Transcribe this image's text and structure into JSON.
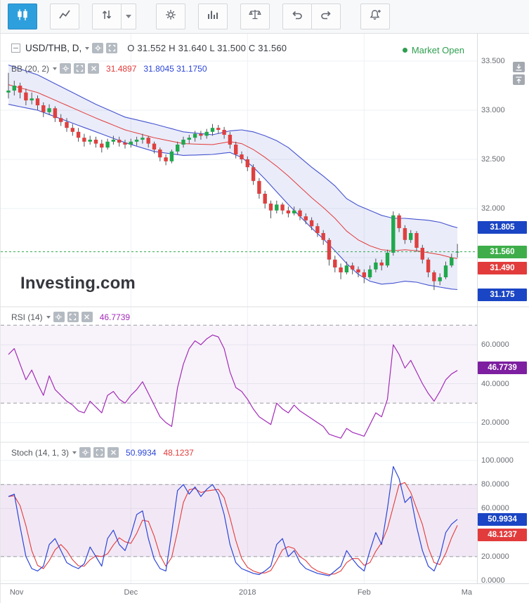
{
  "colors": {
    "accent_blue": "#2e9fdd",
    "up_green": "#1fa84c",
    "down_red": "#de4040",
    "wick": "#50535a",
    "bb_blue": "#4453cf",
    "bb_fill": "rgba(90,105,205,0.13)",
    "bb_red": "#e23b3b",
    "rsi_purple": "#a22bb8",
    "rsi_band_fill": "rgba(128,30,160,0.055)",
    "stoch_k_blue": "#2c46d8",
    "stoch_d_red": "#e23b3b",
    "stoch_band_fill": "rgba(128,30,160,0.10)",
    "badge_blue": "#1a45c4",
    "badge_green": "#3fae4a",
    "badge_red": "#e23b3b",
    "badge_purple": "#7d1fa0",
    "market_open_green": "#2e9e4f",
    "last_price_line": "#2fa84f",
    "grid": "#eef0f4",
    "dashed_band": "#9b9ba3"
  },
  "toolbar": {
    "buttons": [
      {
        "name": "candlestick-style-button",
        "icon": "candlestick-chart-icon",
        "active": true
      },
      {
        "name": "line-style-button",
        "icon": "line-chart-icon",
        "active": false
      },
      {
        "name": "intervals-button",
        "icon": "up-down-arrows-icon",
        "active": false
      },
      {
        "name": "intervals-dropdown-button",
        "icon": "chevron-down-icon",
        "active": false
      },
      {
        "name": "settings-button",
        "icon": "gear-icon",
        "active": false
      },
      {
        "name": "indicators-button",
        "icon": "bar-chart-icon",
        "active": false
      },
      {
        "name": "scales-button",
        "icon": "balance-scale-icon",
        "active": false
      },
      {
        "name": "undo-button",
        "icon": "undo-arrow-icon",
        "active": false
      },
      {
        "name": "redo-button",
        "icon": "redo-arrow-icon",
        "active": false
      },
      {
        "name": "alerts-button",
        "icon": "bell-plus-icon",
        "active": false
      }
    ]
  },
  "main_chart": {
    "symbol": "USD/THB, D,",
    "ohlc": "O 31.552  H 31.640  L 31.500  C 31.560",
    "market_status": "Market Open",
    "bb": {
      "label": "BB (20, 2)",
      "middle_value": "31.4897",
      "upper_lower_values": "31.8045  31.1750"
    },
    "badges": {
      "upper": "31.805",
      "last": "31.560",
      "middle": "31.490",
      "lower": "31.175"
    },
    "watermark": "Investing",
    "watermark_suffix": ".com"
  },
  "rsi": {
    "label": "RSI (14)",
    "value": "46.7739",
    "badge": "46.7739"
  },
  "stoch": {
    "label": "Stoch (14, 1, 3)",
    "k_value": "50.9934",
    "d_value": "48.1237",
    "k_badge": "50.9934",
    "d_badge": "48.1237"
  },
  "chart_data": {
    "type": "candlestick",
    "symbol": "USD/THB",
    "interval": "D",
    "x_labels": [
      {
        "label": "Nov",
        "index": 1.4
      },
      {
        "label": "Dec",
        "index": 21
      },
      {
        "label": "2018",
        "index": 41
      },
      {
        "label": "Feb",
        "index": 61
      },
      {
        "label": "Ma",
        "index": 78.6
      }
    ],
    "gridline_indices": [
      21,
      41,
      61
    ],
    "candles": [
      [
        33.18,
        33.38,
        33.12,
        33.2
      ],
      [
        33.2,
        33.3,
        33.15,
        33.25
      ],
      [
        33.25,
        33.28,
        33.12,
        33.18
      ],
      [
        33.18,
        33.22,
        33.05,
        33.1
      ],
      [
        33.1,
        33.18,
        33.06,
        33.12
      ],
      [
        33.12,
        33.15,
        33.0,
        33.05
      ],
      [
        33.05,
        33.08,
        32.93,
        32.98
      ],
      [
        32.98,
        33.06,
        32.95,
        33.02
      ],
      [
        33.02,
        33.04,
        32.88,
        32.92
      ],
      [
        32.92,
        32.96,
        32.84,
        32.88
      ],
      [
        32.88,
        32.92,
        32.78,
        32.82
      ],
      [
        32.82,
        32.86,
        32.74,
        32.78
      ],
      [
        32.78,
        32.82,
        32.68,
        32.72
      ],
      [
        32.72,
        32.76,
        32.63,
        32.68
      ],
      [
        32.68,
        32.74,
        32.65,
        32.7
      ],
      [
        32.7,
        32.73,
        32.62,
        32.66
      ],
      [
        32.66,
        32.7,
        32.57,
        32.62
      ],
      [
        32.62,
        32.71,
        32.6,
        32.68
      ],
      [
        32.68,
        32.74,
        32.65,
        32.7
      ],
      [
        32.7,
        32.73,
        32.63,
        32.67
      ],
      [
        32.67,
        32.7,
        32.61,
        32.65
      ],
      [
        32.65,
        32.71,
        32.62,
        32.68
      ],
      [
        32.68,
        32.73,
        32.64,
        32.7
      ],
      [
        32.7,
        32.76,
        32.66,
        32.72
      ],
      [
        32.72,
        32.74,
        32.62,
        32.66
      ],
      [
        32.66,
        32.68,
        32.56,
        32.6
      ],
      [
        32.6,
        32.62,
        32.48,
        32.52
      ],
      [
        32.52,
        32.55,
        32.44,
        32.48
      ],
      [
        32.48,
        32.6,
        32.46,
        32.58
      ],
      [
        32.58,
        32.68,
        32.55,
        32.65
      ],
      [
        32.65,
        32.73,
        32.62,
        32.7
      ],
      [
        32.7,
        32.75,
        32.66,
        32.72
      ],
      [
        32.72,
        32.79,
        32.68,
        32.76
      ],
      [
        32.76,
        32.79,
        32.7,
        32.74
      ],
      [
        32.74,
        32.81,
        32.71,
        32.78
      ],
      [
        32.78,
        32.86,
        32.74,
        32.82
      ],
      [
        32.82,
        32.85,
        32.76,
        32.8
      ],
      [
        32.8,
        32.83,
        32.71,
        32.75
      ],
      [
        32.75,
        32.78,
        32.61,
        32.65
      ],
      [
        32.65,
        32.68,
        32.51,
        32.55
      ],
      [
        32.55,
        32.58,
        32.46,
        32.5
      ],
      [
        32.5,
        32.53,
        32.38,
        32.42
      ],
      [
        32.42,
        32.45,
        32.24,
        32.28
      ],
      [
        32.28,
        32.31,
        32.1,
        32.15
      ],
      [
        32.15,
        32.18,
        32.0,
        32.05
      ],
      [
        32.05,
        32.08,
        31.9,
        31.98
      ],
      [
        31.98,
        32.08,
        31.95,
        32.04
      ],
      [
        32.04,
        32.06,
        31.94,
        31.98
      ],
      [
        31.98,
        32.02,
        31.91,
        31.95
      ],
      [
        31.95,
        32.02,
        31.93,
        31.98
      ],
      [
        31.98,
        32.0,
        31.88,
        31.92
      ],
      [
        31.92,
        31.95,
        31.84,
        31.88
      ],
      [
        31.88,
        31.91,
        31.78,
        31.82
      ],
      [
        31.82,
        31.85,
        31.71,
        31.75
      ],
      [
        31.75,
        31.78,
        31.63,
        31.68
      ],
      [
        31.68,
        31.7,
        31.42,
        31.48
      ],
      [
        31.48,
        31.52,
        31.35,
        31.4
      ],
      [
        31.4,
        31.44,
        31.28,
        31.35
      ],
      [
        31.35,
        31.46,
        31.33,
        31.42
      ],
      [
        31.42,
        31.45,
        31.33,
        31.38
      ],
      [
        31.38,
        31.41,
        31.3,
        31.35
      ],
      [
        31.35,
        31.38,
        31.24,
        31.3
      ],
      [
        31.3,
        31.42,
        31.28,
        31.38
      ],
      [
        31.38,
        31.49,
        31.35,
        31.45
      ],
      [
        31.45,
        31.48,
        31.37,
        31.42
      ],
      [
        31.42,
        31.58,
        31.4,
        31.55
      ],
      [
        31.55,
        31.97,
        31.52,
        31.93
      ],
      [
        31.93,
        31.95,
        31.76,
        31.8
      ],
      [
        31.8,
        31.83,
        31.64,
        31.68
      ],
      [
        31.68,
        31.78,
        31.65,
        31.75
      ],
      [
        31.75,
        31.77,
        31.56,
        31.6
      ],
      [
        31.6,
        31.63,
        31.44,
        31.48
      ],
      [
        31.48,
        31.5,
        31.3,
        31.35
      ],
      [
        31.35,
        31.37,
        31.17,
        31.26
      ],
      [
        31.26,
        31.34,
        31.22,
        31.3
      ],
      [
        31.3,
        31.46,
        31.28,
        31.42
      ],
      [
        31.42,
        31.54,
        31.4,
        31.5
      ],
      [
        31.552,
        31.64,
        31.5,
        31.56
      ]
    ],
    "bollinger": {
      "anchors_index": [
        0,
        5,
        10,
        15,
        20,
        25,
        30,
        35,
        38,
        40,
        42,
        44,
        46,
        48,
        50,
        52,
        54,
        56,
        58,
        60,
        62,
        64,
        66,
        68,
        70,
        72,
        74,
        76,
        77
      ],
      "middle": [
        33.26,
        33.18,
        33.05,
        32.92,
        32.8,
        32.72,
        32.66,
        32.65,
        32.68,
        32.66,
        32.6,
        32.52,
        32.43,
        32.33,
        32.22,
        32.11,
        32.01,
        31.9,
        31.77,
        31.68,
        31.62,
        31.58,
        31.57,
        31.58,
        31.57,
        31.55,
        31.53,
        31.5,
        31.4897
      ],
      "width": [
        0.2,
        0.18,
        0.16,
        0.14,
        0.13,
        0.14,
        0.12,
        0.1,
        0.11,
        0.14,
        0.18,
        0.22,
        0.26,
        0.29,
        0.3,
        0.31,
        0.32,
        0.33,
        0.33,
        0.35,
        0.36,
        0.35,
        0.33,
        0.32,
        0.32,
        0.33,
        0.33,
        0.32,
        0.3148
      ]
    },
    "last_price": 31.56,
    "price_panel": {
      "ylim": [
        31.0,
        33.693
      ],
      "ticks": [
        [
          "33.500",
          33.5
        ],
        [
          "33.000",
          33.0
        ],
        [
          "32.500",
          32.5
        ],
        [
          "32.000",
          32.0
        ]
      ],
      "grid_values": [
        33.5,
        33.0,
        32.5,
        32.0,
        31.5
      ]
    },
    "rsi_panel": {
      "ylim": [
        9.9,
        79.5
      ],
      "band": [
        30,
        70
      ],
      "ticks": [
        [
          "60.0000",
          60
        ],
        [
          "40.0000",
          40
        ],
        [
          "20.0000",
          20
        ]
      ],
      "values": [
        55,
        58,
        50,
        42,
        47,
        40,
        34,
        44,
        37,
        34,
        31,
        29,
        26,
        25,
        31,
        28,
        25,
        34,
        36,
        32,
        30,
        34,
        37,
        41,
        35,
        29,
        23,
        20,
        18,
        38,
        50,
        58,
        62,
        60,
        63,
        65,
        64,
        58,
        46,
        38,
        36,
        32,
        27,
        23,
        21,
        19,
        30,
        27,
        25,
        29,
        26,
        24,
        22,
        20,
        18,
        14,
        13,
        12,
        17,
        15,
        14,
        13,
        19,
        25,
        23,
        32,
        60,
        55,
        48,
        52,
        46,
        40,
        35,
        31,
        36,
        42,
        45,
        46.8
      ],
      "last": 46.7739
    },
    "stoch_panel": {
      "ylim": [
        -2.3,
        115.2
      ],
      "band": [
        20,
        80
      ],
      "ticks": [
        [
          "100.0000",
          100
        ],
        [
          "80.0000",
          80
        ],
        [
          "60.0000",
          60
        ],
        [
          "20.0000",
          20
        ],
        [
          "0.0000",
          0
        ]
      ],
      "k": [
        70,
        72,
        45,
        20,
        10,
        8,
        12,
        30,
        35,
        25,
        15,
        12,
        10,
        14,
        28,
        20,
        12,
        35,
        42,
        30,
        25,
        38,
        55,
        58,
        35,
        18,
        10,
        8,
        40,
        75,
        80,
        72,
        78,
        70,
        76,
        80,
        72,
        55,
        30,
        15,
        10,
        8,
        6,
        5,
        8,
        12,
        30,
        35,
        20,
        25,
        15,
        10,
        8,
        6,
        5,
        4,
        8,
        12,
        25,
        18,
        12,
        8,
        25,
        40,
        30,
        60,
        95,
        85,
        65,
        70,
        45,
        25,
        12,
        8,
        20,
        40,
        47,
        51
      ],
      "d_smoothing": 3,
      "k_last": 50.9934,
      "d_last": 48.1237
    }
  }
}
